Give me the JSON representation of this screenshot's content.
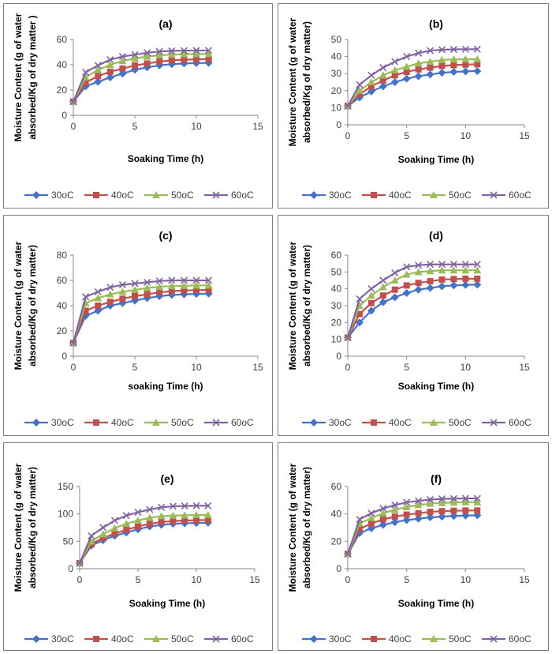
{
  "colors": {
    "30oC": "#4472C4",
    "40oC": "#C0504D",
    "50oC": "#9BBB59",
    "60oC": "#8064A2"
  },
  "legend_labels": [
    "30oC",
    "40oC",
    "50oC",
    "60oC"
  ],
  "chart_data": [
    {
      "type": "line",
      "title": "(a)",
      "xlabel": "Soaking Time (h)",
      "ylabel_lines": [
        "Moisture Content (g of water",
        "absorbed/Kg of dry matter )"
      ],
      "xlim": [
        0,
        15
      ],
      "xticks": [
        0,
        5,
        10,
        15
      ],
      "ylim": [
        0,
        60
      ],
      "yticks": [
        0,
        20,
        40,
        60
      ],
      "legend": "bottom",
      "x": [
        0,
        1,
        2,
        3,
        4,
        5,
        6,
        7,
        8,
        9,
        10,
        11
      ],
      "series": [
        {
          "name": "30oC",
          "marker": "diamond",
          "values": [
            10.8,
            23,
            26.5,
            30,
            33,
            36,
            38,
            39.5,
            40.5,
            41,
            41.3,
            41.5
          ]
        },
        {
          "name": "40oC",
          "marker": "square",
          "values": [
            10.8,
            26,
            31,
            34.5,
            37,
            39.5,
            41,
            42.5,
            43.5,
            44,
            44.3,
            44.5
          ]
        },
        {
          "name": "50oC",
          "marker": "triangle",
          "values": [
            10.8,
            30,
            36,
            40,
            43,
            45,
            46.5,
            47.5,
            48,
            48.3,
            48.5,
            48.5
          ]
        },
        {
          "name": "60oC",
          "marker": "x",
          "values": [
            10.8,
            34,
            39.5,
            44,
            46.5,
            48,
            49.5,
            50.5,
            51,
            51.2,
            51.3,
            51.3
          ]
        }
      ]
    },
    {
      "type": "line",
      "title": "(b)",
      "xlabel": "Soaking Time (h)",
      "ylabel_lines": [
        "Moisture Content (g of water",
        "absorbed/Kg of dry matter)"
      ],
      "xlim": [
        0,
        15
      ],
      "xticks": [
        0,
        5,
        10,
        15
      ],
      "ylim": [
        0,
        50
      ],
      "yticks": [
        0,
        10,
        20,
        30,
        40,
        50
      ],
      "legend": "bottom",
      "x": [
        0,
        1,
        2,
        3,
        4,
        5,
        6,
        7,
        8,
        9,
        10,
        11
      ],
      "series": [
        {
          "name": "30oC",
          "marker": "diamond",
          "values": [
            11,
            16,
            19.5,
            22.5,
            25,
            27,
            28.5,
            29.5,
            30.5,
            31,
            31.3,
            31.5
          ]
        },
        {
          "name": "40oC",
          "marker": "square",
          "values": [
            11,
            18,
            22.5,
            26,
            29,
            31,
            32.5,
            33.5,
            34.5,
            35,
            35.3,
            35.5
          ]
        },
        {
          "name": "50oC",
          "marker": "triangle",
          "values": [
            11,
            20,
            25,
            29,
            32,
            34,
            36,
            37,
            38,
            38.3,
            38.5,
            38.5
          ]
        },
        {
          "name": "60oC",
          "marker": "x",
          "values": [
            11,
            23.5,
            29,
            33.5,
            37,
            40,
            42,
            43.5,
            44,
            44.2,
            44.3,
            44.3
          ]
        }
      ]
    },
    {
      "type": "line",
      "title": "(c)",
      "xlabel": "soaking Time (h)",
      "ylabel_lines": [
        "Moisture Content (g of water",
        "absorbed/Kg of dry matter)"
      ],
      "xlim": [
        0,
        15
      ],
      "xticks": [
        0,
        5,
        10,
        15
      ],
      "ylim": [
        0,
        80
      ],
      "yticks": [
        0,
        20,
        40,
        60,
        80
      ],
      "legend": "bottom",
      "x": [
        0,
        1,
        2,
        3,
        4,
        5,
        6,
        7,
        8,
        9,
        10,
        11
      ],
      "series": [
        {
          "name": "30oC",
          "marker": "diamond",
          "values": [
            10.5,
            32,
            36,
            40,
            42,
            44,
            46,
            47.5,
            48.5,
            49,
            49.3,
            49.5
          ]
        },
        {
          "name": "40oC",
          "marker": "square",
          "values": [
            10.5,
            36,
            40,
            43,
            45.5,
            47.5,
            49,
            50.5,
            51.5,
            52,
            52.3,
            52.5
          ]
        },
        {
          "name": "50oC",
          "marker": "triangle",
          "values": [
            10.5,
            42,
            46,
            49,
            51,
            52.5,
            54,
            55,
            55.5,
            55.8,
            56,
            56
          ]
        },
        {
          "name": "60oC",
          "marker": "x",
          "values": [
            10.5,
            47,
            51,
            54.5,
            56.5,
            57.5,
            58.5,
            59.5,
            60,
            60,
            60,
            60
          ]
        }
      ]
    },
    {
      "type": "line",
      "title": "(d)",
      "xlabel": "Soaking Time (h)",
      "ylabel_lines": [
        "Moisture Content (g of water",
        "absorbed/Kg of dry matter)"
      ],
      "xlim": [
        0,
        15
      ],
      "xticks": [
        0,
        5,
        10,
        15
      ],
      "ylim": [
        0,
        60
      ],
      "yticks": [
        0,
        10,
        20,
        30,
        40,
        50,
        60
      ],
      "legend": "bottom",
      "x": [
        0,
        1,
        2,
        3,
        4,
        5,
        6,
        7,
        8,
        9,
        10,
        11
      ],
      "series": [
        {
          "name": "30oC",
          "marker": "diamond",
          "values": [
            11,
            20,
            27,
            32,
            35,
            37.5,
            39.5,
            40.5,
            41.5,
            42,
            42.3,
            42.5
          ]
        },
        {
          "name": "40oC",
          "marker": "square",
          "values": [
            11,
            25,
            31.5,
            36,
            39.5,
            42,
            43.5,
            44.5,
            45.5,
            45.8,
            46,
            46
          ]
        },
        {
          "name": "50oC",
          "marker": "triangle",
          "values": [
            11,
            30,
            36,
            41,
            45,
            48.5,
            50,
            50.5,
            51,
            51,
            51,
            51
          ]
        },
        {
          "name": "60oC",
          "marker": "x",
          "values": [
            11,
            34,
            40,
            45,
            49.5,
            53,
            54,
            54.5,
            54.5,
            54.5,
            54.5,
            54.5
          ]
        }
      ]
    },
    {
      "type": "line",
      "title": "(e)",
      "xlabel": "Soaking Time (h)",
      "ylabel_lines": [
        "Moisture Content (g of water",
        "absorbed/Kg of dry matter)"
      ],
      "xlim": [
        0,
        15
      ],
      "xticks": [
        0,
        5,
        10,
        15
      ],
      "ylim": [
        0,
        150
      ],
      "yticks": [
        0,
        50,
        100,
        150
      ],
      "legend": "bottom",
      "x": [
        0,
        1,
        2,
        3,
        4,
        5,
        6,
        7,
        8,
        9,
        10,
        11
      ],
      "series": [
        {
          "name": "30oC",
          "marker": "diamond",
          "values": [
            10,
            42,
            52,
            60,
            66,
            72,
            77,
            80,
            82,
            83,
            83.5,
            84
          ]
        },
        {
          "name": "40oC",
          "marker": "square",
          "values": [
            10,
            45,
            56,
            64,
            71,
            77,
            82,
            85,
            87,
            88,
            88.5,
            89
          ]
        },
        {
          "name": "50oC",
          "marker": "triangle",
          "values": [
            10,
            50,
            63,
            74,
            82,
            88,
            93,
            96,
            97,
            97.5,
            98,
            98
          ]
        },
        {
          "name": "60oC",
          "marker": "x",
          "values": [
            10,
            60,
            75,
            88,
            97,
            103,
            108,
            112,
            114,
            114.5,
            115,
            115
          ]
        }
      ]
    },
    {
      "type": "line",
      "title": "(f)",
      "xlabel": "Soaking Time (h)",
      "ylabel_lines": [
        "Moisture Content (g of water",
        "absorbed/Kg of dry matter)"
      ],
      "xlim": [
        0,
        15
      ],
      "xticks": [
        0,
        5,
        10,
        15
      ],
      "ylim": [
        0,
        60
      ],
      "yticks": [
        0,
        20,
        40,
        60
      ],
      "legend": "bottom",
      "x": [
        0,
        1,
        2,
        3,
        4,
        5,
        6,
        7,
        8,
        9,
        10,
        11
      ],
      "series": [
        {
          "name": "30oC",
          "marker": "diamond",
          "values": [
            10.8,
            26,
            29.5,
            32,
            34,
            35.5,
            36.5,
            37.5,
            38,
            38.5,
            38.8,
            39
          ]
        },
        {
          "name": "40oC",
          "marker": "square",
          "values": [
            10.8,
            29,
            33,
            36,
            38,
            39.5,
            40.5,
            41.5,
            42,
            42.3,
            42.5,
            42.5
          ]
        },
        {
          "name": "50oC",
          "marker": "triangle",
          "values": [
            10.8,
            33,
            37,
            40.5,
            43,
            45,
            46.5,
            47.5,
            48,
            48.3,
            48.5,
            48.5
          ]
        },
        {
          "name": "60oC",
          "marker": "x",
          "values": [
            10.8,
            36,
            40.5,
            44,
            46.5,
            48.5,
            49.5,
            50.5,
            51,
            51.2,
            51.3,
            51.3
          ]
        }
      ]
    }
  ]
}
